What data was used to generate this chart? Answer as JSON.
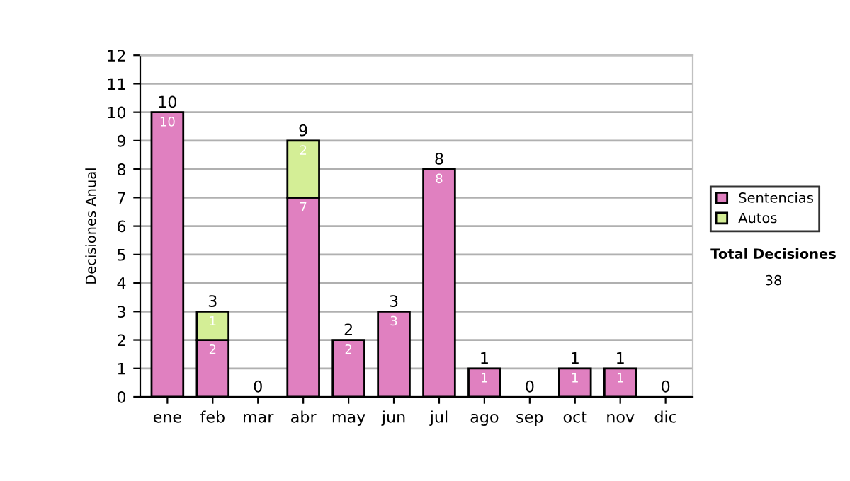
{
  "chart_data": {
    "type": "bar",
    "stacked": true,
    "ylabel": "Decisiones Anual",
    "categories": [
      "ene",
      "feb",
      "mar",
      "abr",
      "may",
      "jun",
      "jul",
      "ago",
      "sep",
      "oct",
      "nov",
      "dic"
    ],
    "series": [
      {
        "name": "Sentencias",
        "color": "#e080c0",
        "values": [
          10,
          2,
          0,
          7,
          2,
          3,
          8,
          1,
          0,
          1,
          1,
          0
        ],
        "value_labels": [
          "10",
          "2",
          null,
          "7",
          "2",
          "3",
          "8",
          "1",
          null,
          "1",
          "1",
          null
        ]
      },
      {
        "name": "Autos",
        "color": "#d4ee96",
        "values": [
          0,
          1,
          0,
          2,
          0,
          0,
          0,
          0,
          0,
          0,
          0,
          0
        ],
        "value_labels": [
          null,
          "1",
          null,
          "2",
          null,
          null,
          null,
          null,
          null,
          null,
          null,
          null
        ]
      }
    ],
    "totals": [
      "10",
      "3",
      "0",
      "9",
      "2",
      "3",
      "8",
      "1",
      "0",
      "1",
      "1",
      "0"
    ],
    "ylim": [
      0,
      12
    ],
    "yticks": [
      0,
      1,
      2,
      3,
      4,
      5,
      6,
      7,
      8,
      9,
      10,
      11,
      12
    ],
    "grid": "y",
    "legend": "right",
    "annotations": [
      "Total Decisiones",
      "38"
    ]
  }
}
